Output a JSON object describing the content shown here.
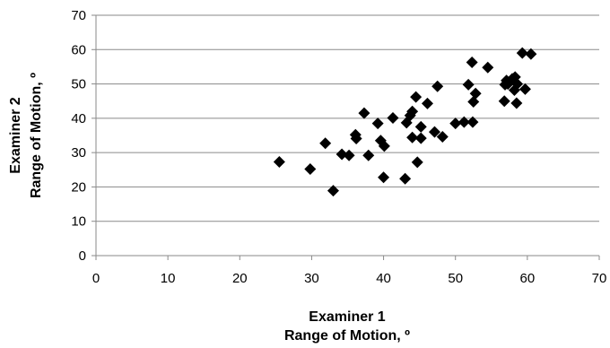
{
  "chart_data": {
    "type": "scatter",
    "xlabel_line1": "Examiner 1",
    "xlabel_line2": "Range of Motion, º",
    "ylabel_line1": "Examiner 2",
    "ylabel_line2": "Range of Motion, º",
    "xlim": [
      0,
      70
    ],
    "ylim": [
      0,
      70
    ],
    "xticks": [
      0,
      10,
      20,
      30,
      40,
      50,
      60,
      70
    ],
    "yticks": [
      0,
      10,
      20,
      30,
      40,
      50,
      60,
      70
    ],
    "grid": "horizontal",
    "marker": "diamond",
    "marker_color": "#000000",
    "points": [
      [
        25.5,
        27.3
      ],
      [
        29.8,
        25.2
      ],
      [
        31.9,
        32.7
      ],
      [
        33.0,
        18.9
      ],
      [
        34.2,
        29.5
      ],
      [
        35.2,
        29.2
      ],
      [
        36.1,
        35.2
      ],
      [
        36.2,
        34.1
      ],
      [
        37.3,
        41.5
      ],
      [
        37.9,
        29.2
      ],
      [
        39.2,
        38.5
      ],
      [
        39.6,
        33.5
      ],
      [
        40.0,
        22.8
      ],
      [
        40.1,
        31.9
      ],
      [
        41.3,
        40.1
      ],
      [
        43.0,
        22.4
      ],
      [
        43.2,
        38.7
      ],
      [
        43.7,
        40.8
      ],
      [
        44.0,
        42.0
      ],
      [
        44.0,
        34.4
      ],
      [
        44.5,
        46.2
      ],
      [
        44.7,
        27.2
      ],
      [
        45.2,
        37.5
      ],
      [
        45.2,
        34.2
      ],
      [
        46.1,
        44.3
      ],
      [
        47.1,
        36.0
      ],
      [
        47.5,
        49.3
      ],
      [
        48.2,
        34.6
      ],
      [
        50.0,
        38.5
      ],
      [
        51.2,
        38.9
      ],
      [
        51.8,
        49.8
      ],
      [
        52.3,
        56.3
      ],
      [
        52.4,
        38.9
      ],
      [
        52.5,
        44.8
      ],
      [
        52.8,
        47.2
      ],
      [
        54.5,
        54.8
      ],
      [
        56.8,
        45.0
      ],
      [
        56.9,
        49.8
      ],
      [
        57.1,
        51.0
      ],
      [
        57.3,
        50.0
      ],
      [
        57.9,
        51.5
      ],
      [
        58.2,
        48.2
      ],
      [
        58.3,
        52.0
      ],
      [
        58.5,
        44.4
      ],
      [
        58.6,
        50.0
      ],
      [
        59.3,
        59.0
      ],
      [
        59.7,
        48.5
      ],
      [
        60.5,
        58.7
      ]
    ]
  }
}
